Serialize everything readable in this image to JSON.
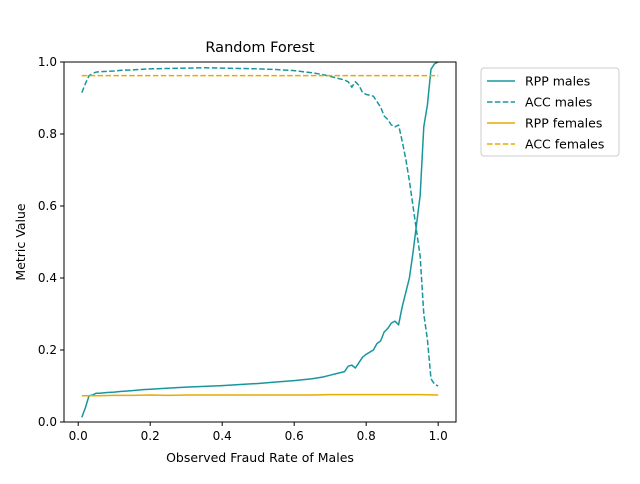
{
  "chart_data": {
    "type": "line",
    "title": "Random Forest",
    "xlabel": "Observed Fraud Rate of Males",
    "ylabel": "Metric Value",
    "xlim": [
      -0.0395,
      1.0495
    ],
    "ylim": [
      0.0,
      1.0
    ],
    "xticks": [
      0.0,
      0.2,
      0.4,
      0.6,
      0.8,
      1.0
    ],
    "xtick_labels": [
      "0.0",
      "0.2",
      "0.4",
      "0.6",
      "0.8",
      "1.0"
    ],
    "yticks": [
      0.0,
      0.2,
      0.4,
      0.6,
      0.8,
      1.0
    ],
    "ytick_labels": [
      "0.0",
      "0.2",
      "0.4",
      "0.6",
      "0.8",
      "1.0"
    ],
    "grid": false,
    "legend_position": "outside-right-top",
    "colors": {
      "teal": "#17979d",
      "gold": "#e6ac00"
    },
    "series": [
      {
        "name": "RPP males",
        "color": "#17979d",
        "style": "solid",
        "x": [
          0.01,
          0.02,
          0.03,
          0.04,
          0.05,
          0.06,
          0.08,
          0.1,
          0.12,
          0.15,
          0.18,
          0.2,
          0.25,
          0.3,
          0.35,
          0.4,
          0.45,
          0.5,
          0.55,
          0.6,
          0.65,
          0.68,
          0.7,
          0.72,
          0.74,
          0.75,
          0.76,
          0.77,
          0.78,
          0.79,
          0.8,
          0.82,
          0.83,
          0.84,
          0.85,
          0.86,
          0.87,
          0.88,
          0.89,
          0.9,
          0.91,
          0.92,
          0.93,
          0.94,
          0.95,
          0.96,
          0.97,
          0.98,
          0.99,
          1.0
        ],
        "y": [
          0.013,
          0.04,
          0.073,
          0.075,
          0.08,
          0.08,
          0.082,
          0.083,
          0.085,
          0.087,
          0.09,
          0.091,
          0.094,
          0.097,
          0.099,
          0.101,
          0.104,
          0.107,
          0.111,
          0.115,
          0.12,
          0.125,
          0.13,
          0.135,
          0.14,
          0.155,
          0.158,
          0.15,
          0.165,
          0.18,
          0.188,
          0.2,
          0.218,
          0.225,
          0.25,
          0.26,
          0.275,
          0.28,
          0.27,
          0.32,
          0.36,
          0.4,
          0.47,
          0.55,
          0.63,
          0.82,
          0.88,
          0.98,
          0.995,
          1.0
        ]
      },
      {
        "name": "ACC males",
        "color": "#17979d",
        "style": "dashed",
        "x": [
          0.01,
          0.02,
          0.03,
          0.04,
          0.05,
          0.06,
          0.08,
          0.1,
          0.12,
          0.15,
          0.18,
          0.2,
          0.25,
          0.3,
          0.35,
          0.4,
          0.45,
          0.5,
          0.55,
          0.6,
          0.65,
          0.68,
          0.7,
          0.72,
          0.74,
          0.75,
          0.76,
          0.77,
          0.78,
          0.79,
          0.8,
          0.82,
          0.83,
          0.84,
          0.85,
          0.86,
          0.87,
          0.88,
          0.89,
          0.9,
          0.91,
          0.92,
          0.93,
          0.94,
          0.95,
          0.96,
          0.97,
          0.98,
          0.99,
          1.0
        ],
        "y": [
          0.915,
          0.94,
          0.962,
          0.968,
          0.972,
          0.973,
          0.974,
          0.975,
          0.977,
          0.978,
          0.98,
          0.981,
          0.982,
          0.983,
          0.984,
          0.983,
          0.982,
          0.981,
          0.979,
          0.976,
          0.97,
          0.965,
          0.96,
          0.955,
          0.95,
          0.945,
          0.93,
          0.945,
          0.935,
          0.915,
          0.91,
          0.905,
          0.89,
          0.875,
          0.85,
          0.84,
          0.825,
          0.82,
          0.825,
          0.78,
          0.73,
          0.67,
          0.6,
          0.53,
          0.46,
          0.3,
          0.23,
          0.12,
          0.105,
          0.1
        ]
      },
      {
        "name": "RPP females",
        "color": "#e6ac00",
        "style": "solid",
        "x": [
          0.01,
          0.05,
          0.1,
          0.15,
          0.2,
          0.25,
          0.3,
          0.35,
          0.4,
          0.45,
          0.5,
          0.55,
          0.6,
          0.65,
          0.7,
          0.75,
          0.8,
          0.85,
          0.9,
          0.95,
          1.0
        ],
        "y": [
          0.073,
          0.073,
          0.074,
          0.074,
          0.075,
          0.074,
          0.075,
          0.075,
          0.075,
          0.075,
          0.075,
          0.075,
          0.075,
          0.075,
          0.076,
          0.076,
          0.076,
          0.076,
          0.076,
          0.076,
          0.075
        ]
      },
      {
        "name": "ACC females",
        "color": "#e6ac00",
        "style": "dashed",
        "x": [
          0.01,
          0.05,
          0.1,
          0.15,
          0.2,
          0.25,
          0.3,
          0.35,
          0.4,
          0.45,
          0.5,
          0.55,
          0.6,
          0.65,
          0.7,
          0.75,
          0.8,
          0.85,
          0.9,
          0.95,
          1.0
        ],
        "y": [
          0.962,
          0.962,
          0.962,
          0.962,
          0.962,
          0.962,
          0.962,
          0.962,
          0.962,
          0.962,
          0.962,
          0.962,
          0.962,
          0.962,
          0.962,
          0.962,
          0.962,
          0.962,
          0.962,
          0.962,
          0.962
        ]
      }
    ]
  }
}
